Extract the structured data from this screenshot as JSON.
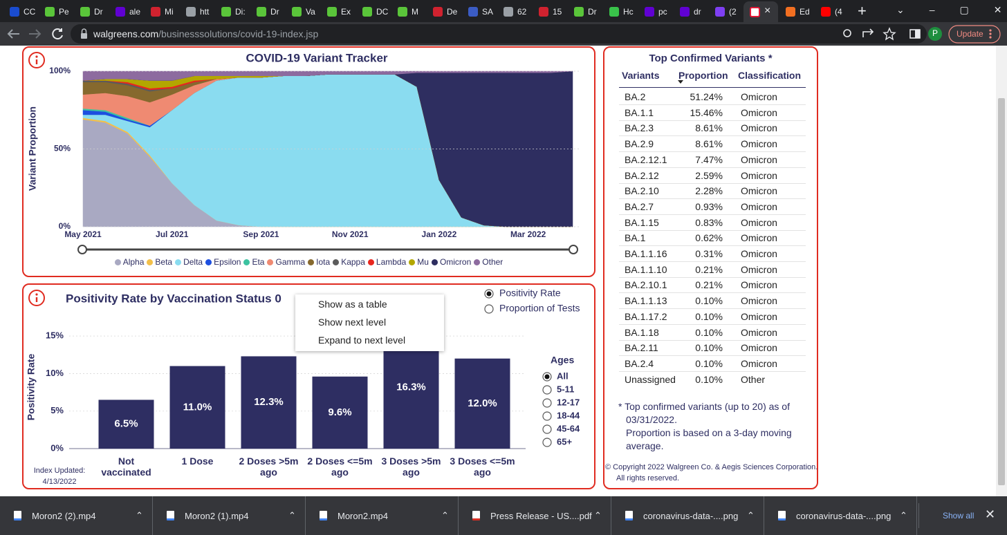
{
  "browser": {
    "tabs": [
      "CC",
      "Pe",
      "Dr",
      "ale",
      "Mi",
      "htt",
      "Di:",
      "Dr",
      "Va",
      "Ex",
      "DC",
      "M",
      "De",
      "SA",
      "62",
      "15",
      "Dr",
      "Hc",
      "pc",
      "dr",
      "(2",
      "Ed",
      "(4"
    ],
    "url_domain": "walgreens.com",
    "url_path": "/businesssolutions/covid-19-index.jsp",
    "update_button": "Update",
    "profile_initial": "P"
  },
  "chart_data": [
    {
      "type": "stacked-area",
      "title": "COVID-19 Variant Tracker",
      "y_label": "Variant Proportion",
      "x": [
        "May 2021",
        null,
        null,
        null,
        "Jul 2021",
        null,
        null,
        null,
        "Sep 2021",
        null,
        null,
        null,
        "Nov 2021",
        null,
        null,
        null,
        "Jan 2022",
        null,
        null,
        null,
        "Mar 2022",
        null,
        null
      ],
      "ylim": [
        0,
        100
      ],
      "yticks": [
        {
          "value": 0,
          "label": "0%"
        },
        {
          "value": 50,
          "label": "50%"
        },
        {
          "value": 100,
          "label": "100%"
        }
      ],
      "grid": true,
      "series": [
        {
          "name": "Alpha",
          "color": "#a9a9c2",
          "values": [
            69,
            67,
            60,
            45,
            28,
            14,
            4,
            1,
            0,
            0,
            0,
            0,
            0,
            0,
            0,
            0,
            0,
            0,
            0,
            0,
            0,
            0,
            0
          ]
        },
        {
          "name": "Beta",
          "color": "#f3c04a",
          "values": [
            1,
            1,
            1,
            1,
            0,
            0,
            0,
            0,
            0,
            0,
            0,
            0,
            0,
            0,
            0,
            0,
            0,
            0,
            0,
            0,
            0,
            0,
            0
          ]
        },
        {
          "name": "Delta",
          "color": "#8adcf0",
          "values": [
            2,
            4,
            7,
            18,
            47,
            72,
            90,
            95,
            96,
            97,
            97,
            98,
            98,
            98,
            98,
            90,
            30,
            6,
            1,
            0,
            0,
            0,
            0
          ]
        },
        {
          "name": "Epsilon",
          "color": "#1d4fe0",
          "values": [
            3,
            2,
            1,
            1,
            0,
            0,
            0,
            0,
            0,
            0,
            0,
            0,
            0,
            0,
            0,
            0,
            0,
            0,
            0,
            0,
            0,
            0,
            0
          ]
        },
        {
          "name": "Eta",
          "color": "#3cc2a0",
          "values": [
            1,
            1,
            1,
            0,
            0,
            0,
            0,
            0,
            0,
            0,
            0,
            0,
            0,
            0,
            0,
            0,
            0,
            0,
            0,
            0,
            0,
            0,
            0
          ]
        },
        {
          "name": "Gamma",
          "color": "#ef8a72",
          "values": [
            9,
            11,
            14,
            15,
            10,
            5,
            1,
            0,
            0,
            0,
            0,
            0,
            0,
            0,
            0,
            0,
            0,
            0,
            0,
            0,
            0,
            0,
            0
          ]
        },
        {
          "name": "Iota",
          "color": "#86692e",
          "values": [
            8,
            7,
            7,
            7,
            4,
            2,
            0,
            0,
            0,
            0,
            0,
            0,
            0,
            0,
            0,
            0,
            0,
            0,
            0,
            0,
            0,
            0,
            0
          ]
        },
        {
          "name": "Kappa",
          "color": "#5b5b5b",
          "values": [
            1,
            1,
            1,
            1,
            0,
            0,
            0,
            0,
            0,
            0,
            0,
            0,
            0,
            0,
            0,
            0,
            0,
            0,
            0,
            0,
            0,
            0,
            0
          ]
        },
        {
          "name": "Lambda",
          "color": "#e8261e",
          "values": [
            0,
            0,
            1,
            1,
            1,
            1,
            0,
            0,
            0,
            0,
            0,
            0,
            0,
            0,
            0,
            0,
            0,
            0,
            0,
            0,
            0,
            0,
            0
          ]
        },
        {
          "name": "Mu",
          "color": "#b3a700",
          "values": [
            0,
            1,
            2,
            5,
            4,
            3,
            2,
            1,
            1,
            0,
            0,
            0,
            0,
            0,
            0,
            0,
            0,
            0,
            0,
            0,
            0,
            0,
            0
          ]
        },
        {
          "name": "Omicron",
          "color": "#2e2e60",
          "values": [
            0,
            0,
            0,
            0,
            0,
            0,
            0,
            0,
            0,
            0,
            0,
            0,
            0,
            0,
            0,
            9,
            69,
            93,
            98,
            99,
            99,
            99,
            100
          ]
        },
        {
          "name": "Other",
          "color": "#8d6b9f",
          "values": [
            6,
            5,
            5,
            6,
            6,
            3,
            3,
            3,
            3,
            3,
            3,
            2,
            2,
            2,
            2,
            1,
            1,
            1,
            1,
            1,
            1,
            1,
            0
          ]
        }
      ]
    },
    {
      "type": "bar",
      "title": "Positivity Rate by Vaccination Status 0",
      "y_label": "Positivity Rate",
      "categories": [
        "Not vaccinated",
        "1 Dose",
        "2 Doses >5m ago",
        "2 Doses <=5m ago",
        "3 Doses >5m ago",
        "3 Doses <=5m ago"
      ],
      "values": [
        6.5,
        11.0,
        12.3,
        9.6,
        16.3,
        12.0
      ],
      "value_labels": [
        "6.5%",
        "11.0%",
        "12.3%",
        "9.6%",
        "16.3%",
        "12.0%"
      ],
      "color": "#2e2e62",
      "ylim": [
        0,
        17.5
      ],
      "yticks": [
        {
          "value": 0,
          "label": "0%"
        },
        {
          "value": 5,
          "label": "5%"
        },
        {
          "value": 10,
          "label": "10%"
        },
        {
          "value": 15,
          "label": "15%"
        }
      ],
      "grid": true
    }
  ],
  "measure_options": [
    "Positivity Rate",
    "Proportion of Tests"
  ],
  "ages": {
    "title": "Ages",
    "options": [
      "All",
      "5-11",
      "12-17",
      "18-44",
      "45-64",
      "65+"
    ]
  },
  "index_updated": {
    "label": "Index Updated:",
    "date": "4/13/2022"
  },
  "context_menu": [
    "Show as a table",
    "Show next level",
    "Expand to next level"
  ],
  "table": {
    "title": "Top Confirmed Variants *",
    "columns": [
      "Variants",
      "Proportion",
      "Classification"
    ],
    "rows": [
      [
        "BA.2",
        "51.24%",
        "Omicron"
      ],
      [
        "BA.1.1",
        "15.46%",
        "Omicron"
      ],
      [
        "BA.2.3",
        "8.61%",
        "Omicron"
      ],
      [
        "BA.2.9",
        "8.61%",
        "Omicron"
      ],
      [
        "BA.2.12.1",
        "7.47%",
        "Omicron"
      ],
      [
        "BA.2.12",
        "2.59%",
        "Omicron"
      ],
      [
        "BA.2.10",
        "2.28%",
        "Omicron"
      ],
      [
        "BA.2.7",
        "0.93%",
        "Omicron"
      ],
      [
        "BA.1.15",
        "0.83%",
        "Omicron"
      ],
      [
        "BA.1",
        "0.62%",
        "Omicron"
      ],
      [
        "BA.1.1.16",
        "0.31%",
        "Omicron"
      ],
      [
        "BA.1.1.10",
        "0.21%",
        "Omicron"
      ],
      [
        "BA.2.10.1",
        "0.21%",
        "Omicron"
      ],
      [
        "BA.1.1.13",
        "0.10%",
        "Omicron"
      ],
      [
        "BA.1.17.2",
        "0.10%",
        "Omicron"
      ],
      [
        "BA.1.18",
        "0.10%",
        "Omicron"
      ],
      [
        "BA.2.11",
        "0.10%",
        "Omicron"
      ],
      [
        "BA.2.4",
        "0.10%",
        "Omicron"
      ],
      [
        "Unassigned",
        "0.10%",
        "Other"
      ]
    ],
    "footnotes": [
      "* Top confirmed variants (up to 20) as of",
      "03/31/2022.",
      "Proportion is based on a 3-day moving",
      "average."
    ]
  },
  "copyright": [
    "© Copyright 2022 Walgreen Co. & Aegis Sciences Corporation.",
    "All rights reserved."
  ],
  "downloads": {
    "files": [
      "Moron2 (2).mp4",
      "Moron2 (1).mp4",
      "Moron2.mp4",
      "Press Release - US....pdf",
      "coronavirus-data-....png",
      "coronavirus-data-....png"
    ],
    "show_all": "Show all"
  }
}
